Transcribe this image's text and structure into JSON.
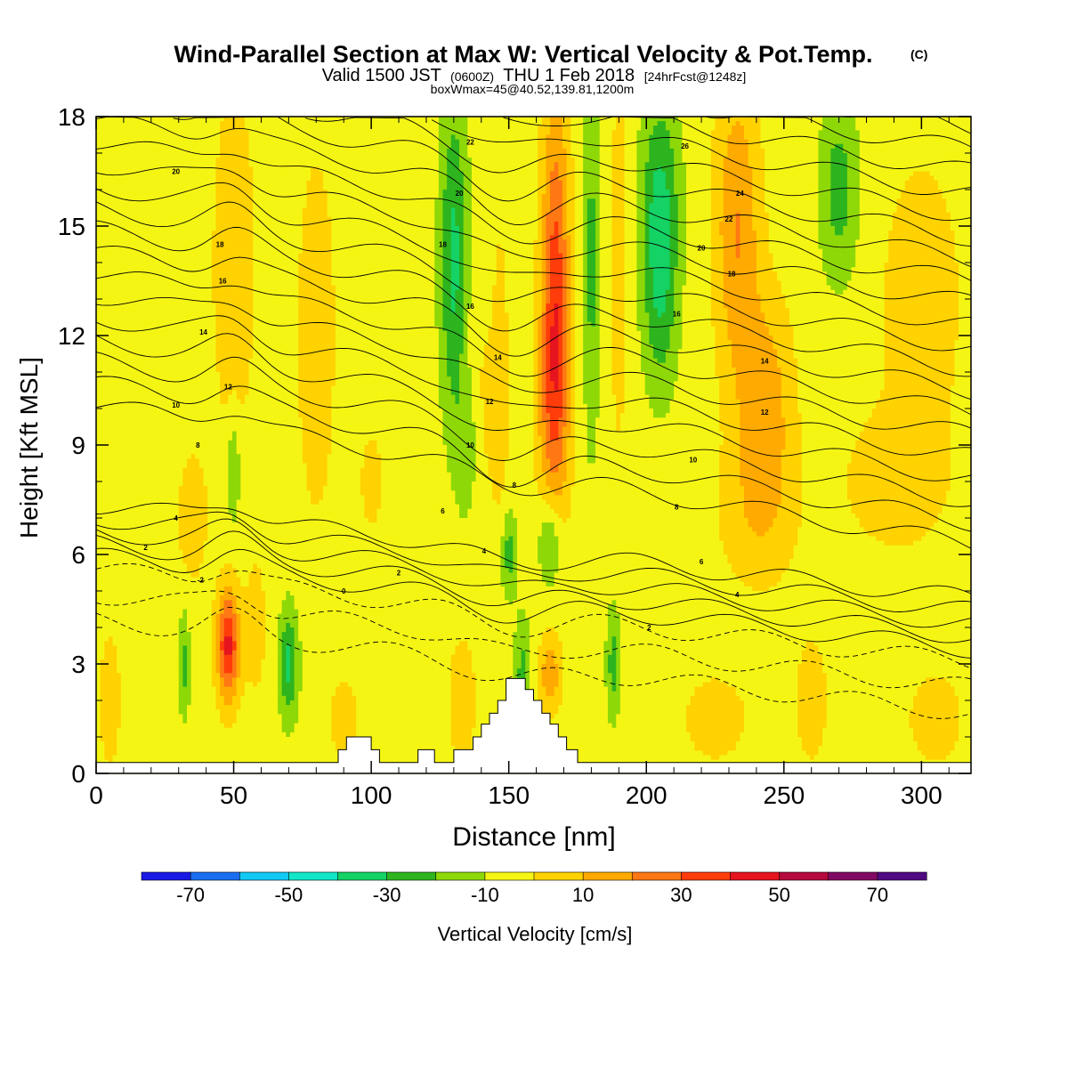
{
  "chart_data": {
    "type": "heatmap",
    "title": "Wind-Parallel Section at Max W: Vertical Velocity & Pot.Temp.",
    "title_mark": "(C)",
    "subtitle": {
      "a": "Valid 1500 JST",
      "b": "(0600Z)",
      "c": "THU 1 Feb 2018",
      "d": "[24hrFcst@1248z]"
    },
    "subtitle2": "boxWmax=45@40.52,139.81,1200m",
    "xlabel": "Distance [nm]",
    "ylabel": "Height [Kft MSL]",
    "xlim": [
      0,
      318
    ],
    "ylim": [
      0,
      18
    ],
    "xticks": [
      "0",
      "50",
      "100",
      "150",
      "200",
      "250",
      "300"
    ],
    "yticks": [
      "0",
      "3",
      "6",
      "9",
      "12",
      "15",
      "18"
    ],
    "colorbar": {
      "label": "Vertical Velocity [cm/s]",
      "tick_labels": [
        "-70",
        "-50",
        "-30",
        "-10",
        "10",
        "30",
        "50",
        "70"
      ],
      "levels": [
        -80,
        -70,
        -60,
        -50,
        -40,
        -30,
        -20,
        -10,
        0,
        10,
        20,
        30,
        40,
        50,
        60,
        70,
        80
      ],
      "colors": [
        "#1a1ae6",
        "#1a6ef0",
        "#12c8f5",
        "#12e6c8",
        "#14d264",
        "#2db41e",
        "#8ed808",
        "#f5f514",
        "#ffd200",
        "#ffaa00",
        "#ff7814",
        "#ff3c0a",
        "#e6141e",
        "#b40a3c",
        "#820a64",
        "#500a82"
      ]
    },
    "w_field": {
      "background": -5,
      "blobs": [
        {
          "x": 5,
          "z": 16,
          "sx": 20,
          "sz": 3,
          "v": -4
        },
        {
          "x": 50,
          "z": 14,
          "sx": 8,
          "sz": 5,
          "v": 12
        },
        {
          "x": 80,
          "z": 12,
          "sx": 7,
          "sz": 5,
          "v": 12
        },
        {
          "x": 35,
          "z": 7,
          "sx": 6,
          "sz": 2,
          "v": 10
        },
        {
          "x": 50,
          "z": 8.3,
          "sx": 2.2,
          "sz": 1.5,
          "v": -18
        },
        {
          "x": 100,
          "z": 8,
          "sx": 6,
          "sz": 2,
          "v": 7
        },
        {
          "x": 140,
          "z": 10,
          "sx": 8,
          "sz": 3,
          "v": 7
        },
        {
          "x": 130,
          "z": 14,
          "sx": 5,
          "sz": 4.5,
          "v": -28
        },
        {
          "x": 135,
          "z": 9,
          "sx": 4,
          "sz": 2,
          "v": -15
        },
        {
          "x": 147,
          "z": 11,
          "sx": 3,
          "sz": 5,
          "v": 8
        },
        {
          "x": 167,
          "z": 13.5,
          "sx": 5,
          "sz": 5,
          "v": 38
        },
        {
          "x": 166,
          "z": 10,
          "sx": 6,
          "sz": 3,
          "v": 20
        },
        {
          "x": 180,
          "z": 14,
          "sx": 3,
          "sz": 5,
          "v": -18
        },
        {
          "x": 190,
          "z": 14,
          "sx": 3,
          "sz": 5,
          "v": 12
        },
        {
          "x": 205,
          "z": 15.5,
          "sx": 7,
          "sz": 3,
          "v": -28
        },
        {
          "x": 205,
          "z": 12.5,
          "sx": 6,
          "sz": 2.5,
          "v": -15
        },
        {
          "x": 233,
          "z": 15,
          "sx": 8,
          "sz": 4,
          "v": 25
        },
        {
          "x": 243,
          "z": 10,
          "sx": 10,
          "sz": 3,
          "v": 22
        },
        {
          "x": 240,
          "z": 7,
          "sx": 15,
          "sz": 2,
          "v": 10
        },
        {
          "x": 270,
          "z": 16,
          "sx": 7,
          "sz": 2.5,
          "v": -20
        },
        {
          "x": 300,
          "z": 13,
          "sx": 15,
          "sz": 4,
          "v": 11
        },
        {
          "x": 290,
          "z": 8,
          "sx": 20,
          "sz": 2,
          "v": 10
        },
        {
          "x": 150,
          "z": 6,
          "sx": 3,
          "sz": 1.2,
          "v": -20
        },
        {
          "x": 165,
          "z": 6.3,
          "sx": 4,
          "sz": 1.2,
          "v": -22
        },
        {
          "x": 48,
          "z": 3.5,
          "sx": 4,
          "sz": 1.5,
          "v": 48
        },
        {
          "x": 58,
          "z": 4,
          "sx": 4,
          "sz": 2,
          "v": 10
        },
        {
          "x": 70,
          "z": 3,
          "sx": 3.5,
          "sz": 1.5,
          "v": -28
        },
        {
          "x": 32,
          "z": 3,
          "sx": 2,
          "sz": 1.5,
          "v": -18
        },
        {
          "x": 5,
          "z": 2,
          "sx": 4,
          "sz": 2,
          "v": 11
        },
        {
          "x": 90,
          "z": 1.5,
          "sx": 7,
          "sz": 1.5,
          "v": 8
        },
        {
          "x": 133,
          "z": 2,
          "sx": 5,
          "sz": 1.8,
          "v": 12
        },
        {
          "x": 165,
          "z": 2.7,
          "sx": 4,
          "sz": 1,
          "v": 22
        },
        {
          "x": 155,
          "z": 2.8,
          "sx": 3,
          "sz": 1.5,
          "v": -18
        },
        {
          "x": 188,
          "z": 3,
          "sx": 2.5,
          "sz": 1.5,
          "v": -20
        },
        {
          "x": 225,
          "z": 1.5,
          "sx": 12,
          "sz": 1.2,
          "v": 11
        },
        {
          "x": 260,
          "z": 2,
          "sx": 6,
          "sz": 1.8,
          "v": 11
        },
        {
          "x": 305,
          "z": 1.5,
          "sx": 10,
          "sz": 1.3,
          "v": 11
        }
      ]
    },
    "theta_contours": {
      "levels": [
        -4,
        -2,
        0,
        1,
        2,
        3,
        4,
        5,
        6,
        7,
        8,
        9,
        10,
        11,
        12,
        13,
        14,
        15,
        16,
        17,
        18,
        19,
        20,
        21,
        22,
        23,
        24,
        25,
        26,
        27,
        28,
        29,
        30
      ],
      "labels": [
        {
          "x": 18,
          "z": 6.2,
          "t": "2"
        },
        {
          "x": 29,
          "z": 7.0,
          "t": "4"
        },
        {
          "x": 37,
          "z": 9.0,
          "t": "8"
        },
        {
          "x": 29,
          "z": 10.1,
          "t": "10"
        },
        {
          "x": 48,
          "z": 10.6,
          "t": "12"
        },
        {
          "x": 39,
          "z": 12.1,
          "t": "14"
        },
        {
          "x": 46,
          "z": 13.5,
          "t": "16"
        },
        {
          "x": 45,
          "z": 14.5,
          "t": "18"
        },
        {
          "x": 29,
          "z": 16.5,
          "t": "20"
        },
        {
          "x": 38,
          "z": 5.3,
          "t": "-2"
        },
        {
          "x": 90,
          "z": 5.0,
          "t": "0"
        },
        {
          "x": 110,
          "z": 5.5,
          "t": "2"
        },
        {
          "x": 141,
          "z": 6.1,
          "t": "4"
        },
        {
          "x": 126,
          "z": 7.2,
          "t": "6"
        },
        {
          "x": 152,
          "z": 7.9,
          "t": "8"
        },
        {
          "x": 136,
          "z": 9.0,
          "t": "10"
        },
        {
          "x": 143,
          "z": 10.2,
          "t": "12"
        },
        {
          "x": 146,
          "z": 11.4,
          "t": "14"
        },
        {
          "x": 136,
          "z": 12.8,
          "t": "16"
        },
        {
          "x": 126,
          "z": 14.5,
          "t": "18"
        },
        {
          "x": 132,
          "z": 15.9,
          "t": "20"
        },
        {
          "x": 136,
          "z": 17.3,
          "t": "22"
        },
        {
          "x": 201,
          "z": 4.0,
          "t": "2"
        },
        {
          "x": 233,
          "z": 4.9,
          "t": "4"
        },
        {
          "x": 220,
          "z": 5.8,
          "t": "6"
        },
        {
          "x": 211,
          "z": 7.3,
          "t": "8"
        },
        {
          "x": 217,
          "z": 8.6,
          "t": "10"
        },
        {
          "x": 243,
          "z": 9.9,
          "t": "12"
        },
        {
          "x": 243,
          "z": 11.3,
          "t": "14"
        },
        {
          "x": 211,
          "z": 12.6,
          "t": "16"
        },
        {
          "x": 231,
          "z": 13.7,
          "t": "18"
        },
        {
          "x": 220,
          "z": 14.4,
          "t": "20"
        },
        {
          "x": 230,
          "z": 15.2,
          "t": "22"
        },
        {
          "x": 234,
          "z": 15.9,
          "t": "24"
        },
        {
          "x": 214,
          "z": 17.2,
          "t": "26"
        }
      ]
    },
    "terrain_kft": [
      [
        0,
        0.3
      ],
      [
        88,
        0.3
      ],
      [
        88,
        0.65
      ],
      [
        91,
        0.65
      ],
      [
        91,
        1.0
      ],
      [
        100,
        1.0
      ],
      [
        100,
        0.65
      ],
      [
        103,
        0.65
      ],
      [
        103,
        0.3
      ],
      [
        117,
        0.3
      ],
      [
        117,
        0.65
      ],
      [
        123,
        0.65
      ],
      [
        123,
        0.3
      ],
      [
        130,
        0.3
      ],
      [
        130,
        0.65
      ],
      [
        137,
        0.65
      ],
      [
        137,
        1.0
      ],
      [
        140,
        1.0
      ],
      [
        140,
        1.35
      ],
      [
        143,
        1.35
      ],
      [
        143,
        1.65
      ],
      [
        146,
        1.65
      ],
      [
        146,
        2.0
      ],
      [
        149,
        2.0
      ],
      [
        149,
        2.6
      ],
      [
        156,
        2.6
      ],
      [
        156,
        2.3
      ],
      [
        159,
        2.3
      ],
      [
        159,
        2.0
      ],
      [
        162,
        2.0
      ],
      [
        162,
        1.65
      ],
      [
        165,
        1.65
      ],
      [
        165,
        1.35
      ],
      [
        168,
        1.35
      ],
      [
        168,
        1.0
      ],
      [
        171,
        1.0
      ],
      [
        171,
        0.65
      ],
      [
        175,
        0.65
      ],
      [
        175,
        0.3
      ],
      [
        318,
        0.3
      ]
    ]
  }
}
